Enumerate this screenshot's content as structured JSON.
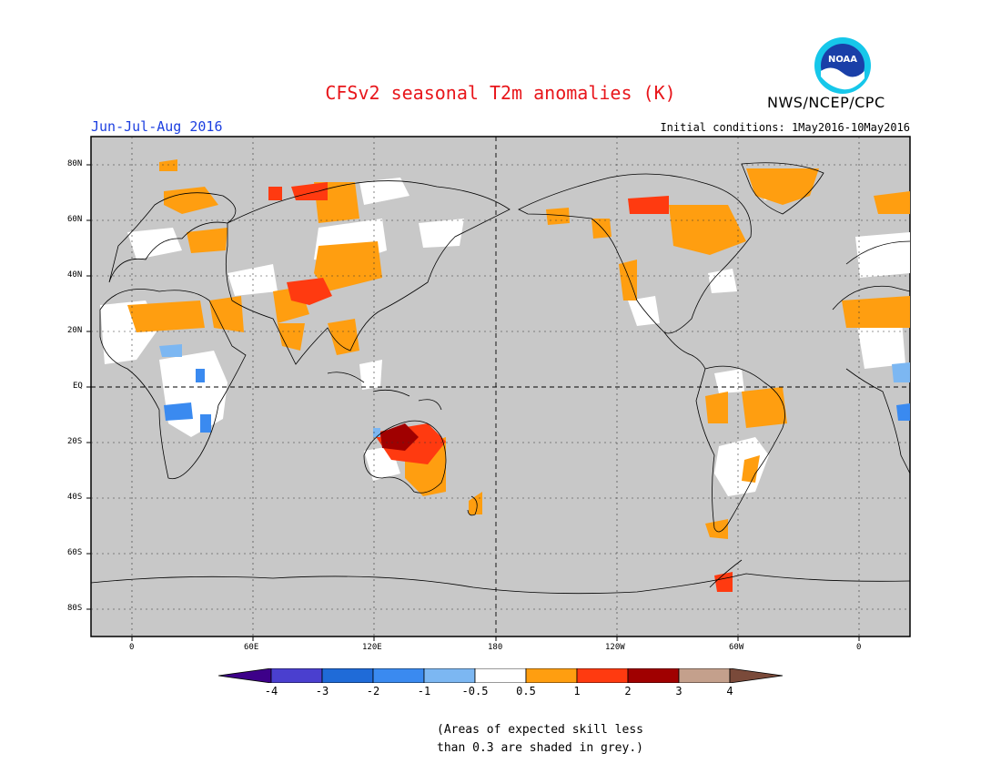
{
  "header": {
    "title": "CFSv2 seasonal T2m anomalies (K)",
    "agency": "NWS/NCEP/CPC",
    "season": "Jun-Jul-Aug 2016",
    "initial_conditions": "Initial conditions: 1May2016-10May2016",
    "logo_text": "NOAA"
  },
  "colors": {
    "background": "#c8c8c8",
    "title": "#e8161b",
    "season": "#1c3fe0",
    "warm_0_5_1": "#ff9e10",
    "warm_1_2": "#ff3a10",
    "warm_2_3": "#a00000",
    "cool_m05_m1": "#7cb7f2",
    "cool_m1_m2": "#3a8af0",
    "neutral": "#ffffff"
  },
  "map": {
    "lon_ticks": [
      "0",
      "60E",
      "120E",
      "180",
      "120W",
      "60W",
      "0"
    ],
    "lat_ticks": [
      "80N",
      "60N",
      "40N",
      "20N",
      "EQ",
      "20S",
      "40S",
      "60S",
      "80S"
    ]
  },
  "legend": {
    "labels": [
      "-4",
      "-3",
      "-2",
      "-1",
      "-0.5",
      "0.5",
      "1",
      "2",
      "3",
      "4"
    ],
    "swatches": [
      "#3d0089",
      "#4a3fcf",
      "#1f6bd8",
      "#3a8af0",
      "#7cb7f2",
      "#ffffff",
      "#ff9e10",
      "#ff3a10",
      "#a00000",
      "#c4a08c",
      "#7a4a3a"
    ]
  },
  "note": {
    "line1": "(Areas of expected skill less",
    "line2": "than 0.3 are shaded in grey.)"
  }
}
